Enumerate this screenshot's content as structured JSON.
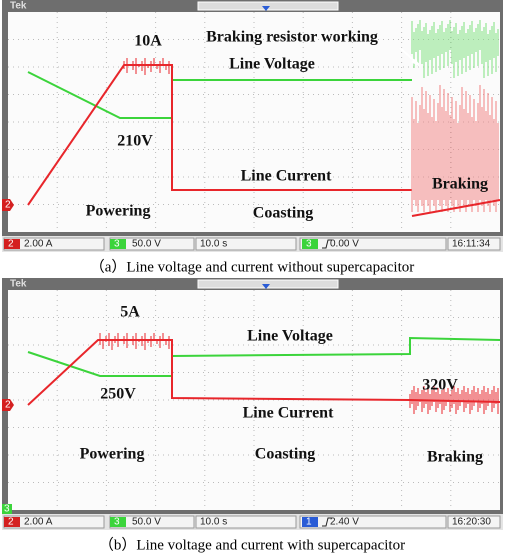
{
  "panels": [
    {
      "brand": "Tek",
      "annotations": [
        "10A",
        "Braking resistor working",
        "Line Voltage",
        "210V",
        "Line Current",
        "Braking",
        "Powering",
        "Coasting"
      ],
      "channel_marker": "2",
      "status": [
        "2",
        "2.00 A",
        "3",
        "50.0 V",
        "10.0 s",
        "3",
        "0.00 V",
        "16:11:34"
      ],
      "caption": "（a）Line voltage and current without supercapacitor"
    },
    {
      "brand": "Tek",
      "annotations": [
        "5A",
        "Line Voltage",
        "250V",
        "320V",
        "Line Current",
        "Powering",
        "Coasting",
        "Braking"
      ],
      "channel_marker": "2",
      "bottom_marker": "3",
      "status": [
        "2",
        "2.00 A",
        "3",
        "50.0 V",
        "10.0 s",
        "1",
        "2.40 V",
        "16:20:30"
      ],
      "caption": "（b）Line voltage and current with supercapacitor"
    }
  ]
}
